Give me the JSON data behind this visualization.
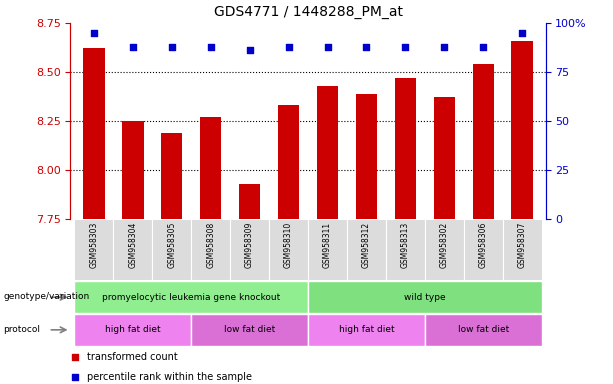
{
  "title": "GDS4771 / 1448288_PM_at",
  "samples": [
    "GSM958303",
    "GSM958304",
    "GSM958305",
    "GSM958308",
    "GSM958309",
    "GSM958310",
    "GSM958311",
    "GSM958312",
    "GSM958313",
    "GSM958302",
    "GSM958306",
    "GSM958307"
  ],
  "red_values": [
    8.62,
    8.25,
    8.19,
    8.27,
    7.93,
    8.33,
    8.43,
    8.39,
    8.47,
    8.37,
    8.54,
    8.66
  ],
  "blue_values": [
    95,
    88,
    88,
    88,
    86,
    88,
    88,
    88,
    88,
    88,
    88,
    95
  ],
  "ylim_left": [
    7.75,
    8.75
  ],
  "ylim_right": [
    0,
    100
  ],
  "yticks_left": [
    7.75,
    8.0,
    8.25,
    8.5,
    8.75
  ],
  "yticks_right": [
    0,
    25,
    50,
    75,
    100
  ],
  "geno_data": [
    {
      "label": "promyelocytic leukemia gene knockout",
      "start": 0,
      "end": 6,
      "color": "#90EE90"
    },
    {
      "label": "wild type",
      "start": 6,
      "end": 12,
      "color": "#7EE07E"
    }
  ],
  "prot_data": [
    {
      "label": "high fat diet",
      "start": 0,
      "end": 3,
      "color": "#EE82EE"
    },
    {
      "label": "low fat diet",
      "start": 3,
      "end": 6,
      "color": "#DA70D6"
    },
    {
      "label": "high fat diet",
      "start": 6,
      "end": 9,
      "color": "#EE82EE"
    },
    {
      "label": "low fat diet",
      "start": 9,
      "end": 12,
      "color": "#DA70D6"
    }
  ],
  "bar_color": "#CC0000",
  "dot_color": "#0000CC",
  "background_color": "#ffffff",
  "left_axis_color": "#CC0000",
  "right_axis_color": "#0000CC",
  "xlabels_bg": "#DCDCDC"
}
